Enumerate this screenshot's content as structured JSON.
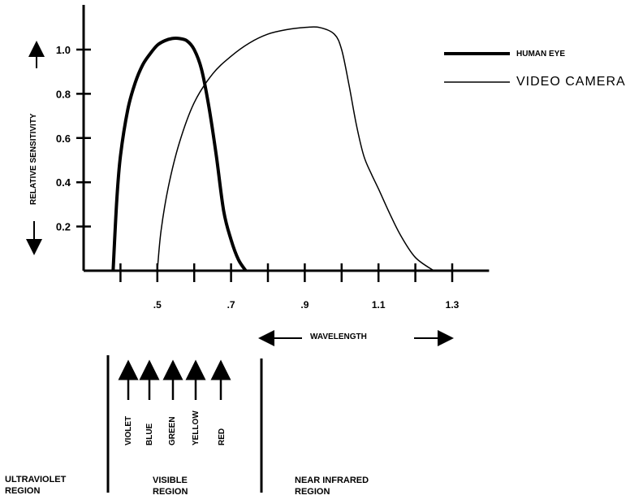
{
  "chart_data": {
    "type": "line",
    "ylabel": "RELATIVE SENSITIVITY",
    "xlabel": "WAVELENGTH",
    "xlim": [
      0.3,
      1.4
    ],
    "ylim": [
      0,
      1.2
    ],
    "x_ticks": [
      0.4,
      0.5,
      0.6,
      0.7,
      0.8,
      0.9,
      1.0,
      1.1,
      1.2,
      1.3
    ],
    "x_tick_labels": [
      ".5",
      ".7",
      ".9",
      "1.1",
      "1.3"
    ],
    "x_tick_label_values": [
      0.5,
      0.7,
      0.9,
      1.1,
      1.3
    ],
    "y_tick_labels": [
      "0.2",
      "0.4",
      "0.6",
      "0.8",
      "1.0"
    ],
    "y_tick_label_values": [
      0.2,
      0.4,
      0.6,
      0.8,
      1.0
    ],
    "grid": false,
    "legend_position": "top-right",
    "series": [
      {
        "name": "HUMAN EYE",
        "style": "thick",
        "x": [
          0.38,
          0.39,
          0.4,
          0.42,
          0.44,
          0.46,
          0.48,
          0.5,
          0.52,
          0.54,
          0.56,
          0.58,
          0.6,
          0.62,
          0.64,
          0.66,
          0.68,
          0.7,
          0.72,
          0.74
        ],
        "y": [
          0.0,
          0.32,
          0.52,
          0.73,
          0.85,
          0.93,
          0.98,
          1.02,
          1.04,
          1.05,
          1.05,
          1.04,
          1.0,
          0.91,
          0.74,
          0.52,
          0.27,
          0.14,
          0.05,
          0.0
        ]
      },
      {
        "name": "VIDEO CAMERA",
        "style": "thin",
        "x": [
          0.5,
          0.51,
          0.53,
          0.56,
          0.6,
          0.65,
          0.7,
          0.75,
          0.8,
          0.85,
          0.9,
          0.94,
          0.98,
          1.0,
          1.02,
          1.04,
          1.06,
          1.08,
          1.1,
          1.13,
          1.16,
          1.2,
          1.25
        ],
        "y": [
          0.0,
          0.18,
          0.38,
          0.58,
          0.76,
          0.89,
          0.97,
          1.03,
          1.07,
          1.09,
          1.1,
          1.1,
          1.07,
          1.0,
          0.84,
          0.66,
          0.52,
          0.44,
          0.37,
          0.26,
          0.16,
          0.06,
          0.0
        ]
      }
    ],
    "annotations": {
      "wavelength_label": "WAVELENGTH",
      "colors": [
        "VIOLET",
        "BLUE",
        "GREEN",
        "YELLOW",
        "RED"
      ],
      "regions": {
        "ultraviolet": [
          "ULTRAVIOLET",
          "REGION"
        ],
        "visible": [
          "VISIBLE",
          "REGION"
        ],
        "near_infrared": [
          "NEAR INFRARED",
          "REGION"
        ]
      }
    }
  }
}
